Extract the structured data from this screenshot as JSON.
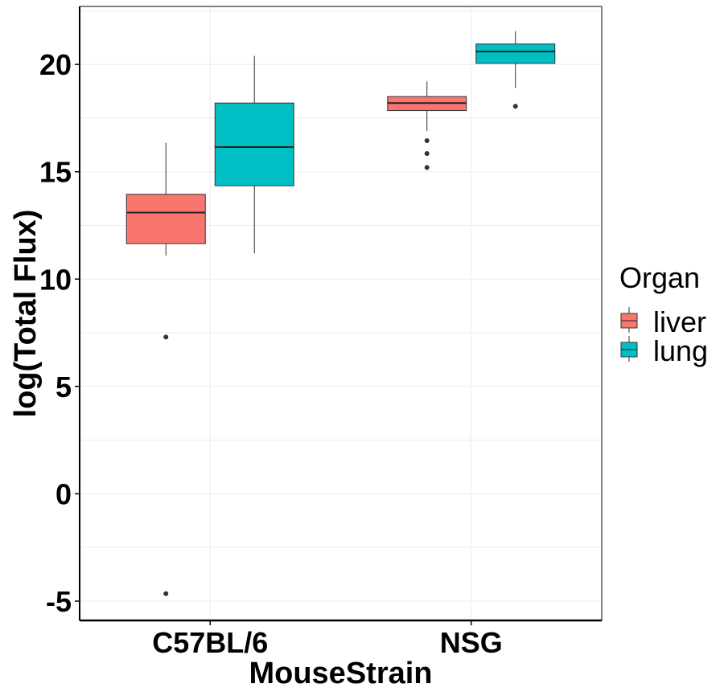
{
  "chart_data": {
    "type": "boxplot",
    "title": "",
    "xlabel": "MouseStrain",
    "ylabel": "log(Total Flux)",
    "categories": [
      "C57BL/6",
      "NSG"
    ],
    "ylim": [
      -5.9,
      22.7
    ],
    "yticks": [
      "-5",
      "0",
      "5",
      "10",
      "15",
      "20"
    ],
    "grid": true,
    "legend": {
      "title": "Organ",
      "position": "right"
    },
    "series": [
      {
        "name": "liver",
        "color": "#F8766D",
        "boxes": [
          {
            "category": "C57BL/6",
            "whisker_low": 11.1,
            "q1": 11.65,
            "median": 13.1,
            "q3": 13.95,
            "whisker_high": 16.35,
            "outliers": [
              7.3,
              -4.65
            ]
          },
          {
            "category": "NSG",
            "whisker_low": 16.9,
            "q1": 17.85,
            "median": 18.2,
            "q3": 18.5,
            "whisker_high": 19.2,
            "outliers": [
              16.45,
              15.85,
              15.2
            ]
          }
        ]
      },
      {
        "name": "lung",
        "color": "#00BFC4",
        "boxes": [
          {
            "category": "C57BL/6",
            "whisker_low": 11.2,
            "q1": 14.35,
            "median": 16.15,
            "q3": 18.2,
            "whisker_high": 20.4,
            "outliers": []
          },
          {
            "category": "NSG",
            "whisker_low": 18.9,
            "q1": 20.05,
            "median": 20.6,
            "q3": 20.95,
            "whisker_high": 21.55,
            "outliers": [
              18.05
            ]
          }
        ]
      }
    ]
  }
}
